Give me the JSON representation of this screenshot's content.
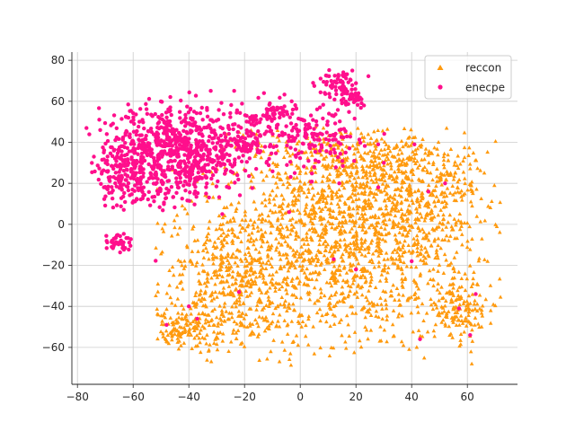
{
  "chart_data": {
    "type": "scatter",
    "title": "",
    "xlabel": "",
    "ylabel": "",
    "xlim": [
      -82,
      78
    ],
    "ylim": [
      -78,
      84
    ],
    "xticks": [
      -80,
      -60,
      -40,
      -20,
      0,
      20,
      40,
      60
    ],
    "yticks": [
      -60,
      -40,
      -20,
      0,
      20,
      40,
      60,
      80
    ],
    "grid": true,
    "legend_position": "top-right",
    "series": [
      {
        "name": "reccon",
        "marker": "triangle",
        "color": "#ff9a0e",
        "clusters": [
          {
            "cx": 15,
            "cy": -5,
            "sx": 25,
            "sy": 26,
            "n": 1700
          },
          {
            "cx": -25,
            "cy": -30,
            "sx": 12,
            "sy": 16,
            "n": 380
          },
          {
            "cx": -42,
            "cy": -50,
            "sx": 6,
            "sy": 5,
            "n": 130
          },
          {
            "cx": 58,
            "cy": -40,
            "sx": 6,
            "sy": 7,
            "n": 150
          },
          {
            "cx": 25,
            "cy": 30,
            "sx": 14,
            "sy": 7,
            "n": 220
          },
          {
            "cx": 45,
            "cy": 10,
            "sx": 12,
            "sy": 14,
            "n": 200
          }
        ],
        "x_range": [
          -52,
          72
        ],
        "y_range": [
          -70,
          48
        ]
      },
      {
        "name": "enecpe",
        "marker": "circle",
        "color": "#ff0f8c",
        "clusters": [
          {
            "cx": -45,
            "cy": 35,
            "sx": 12,
            "sy": 11,
            "n": 750
          },
          {
            "cx": -62,
            "cy": 24,
            "sx": 6,
            "sy": 8,
            "n": 150
          },
          {
            "cx": -20,
            "cy": 45,
            "sx": 8,
            "sy": 8,
            "n": 100
          },
          {
            "cx": -18,
            "cy": 38,
            "sx": 3,
            "sy": 2,
            "n": 40
          },
          {
            "cx": 5,
            "cy": 42,
            "sx": 10,
            "sy": 8,
            "n": 150
          },
          {
            "cx": -7,
            "cy": 56,
            "sx": 3,
            "sy": 3,
            "n": 35
          },
          {
            "cx": 13,
            "cy": 69,
            "sx": 3,
            "sy": 4,
            "n": 60
          },
          {
            "cx": 17,
            "cy": 60,
            "sx": 3,
            "sy": 3,
            "n": 30
          },
          {
            "cx": 20,
            "cy": 62,
            "sx": 2,
            "sy": 1.5,
            "n": 15
          },
          {
            "cx": -65,
            "cy": -8,
            "sx": 2.5,
            "sy": 2,
            "n": 40
          }
        ],
        "outliers": [
          [
            -40,
            -40
          ],
          [
            -22,
            -33
          ],
          [
            -2,
            25
          ],
          [
            5,
            28
          ],
          [
            14,
            20
          ],
          [
            28,
            18
          ],
          [
            46,
            16
          ],
          [
            -28,
            5
          ],
          [
            -4,
            6
          ],
          [
            40,
            -18
          ],
          [
            20,
            -22
          ],
          [
            12,
            -17
          ],
          [
            -37,
            -46
          ],
          [
            57,
            -41
          ],
          [
            63,
            -34
          ],
          [
            61,
            -54
          ],
          [
            41,
            39
          ],
          [
            52,
            20
          ],
          [
            -48,
            -49
          ],
          [
            30,
            30
          ],
          [
            43,
            -56
          ]
        ],
        "x_range": [
          -77,
          62
        ],
        "y_range": [
          -60,
          78
        ]
      }
    ]
  }
}
